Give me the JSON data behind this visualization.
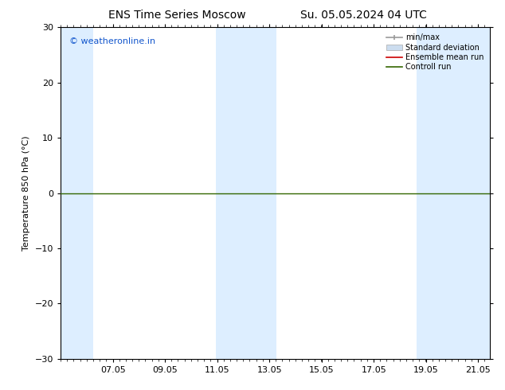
{
  "title_left": "ENS Time Series Moscow",
  "title_right": "Su. 05.05.2024 04 UTC",
  "ylabel": "Temperature 850 hPa (°C)",
  "ylim": [
    -30,
    30
  ],
  "yticks": [
    -30,
    -20,
    -10,
    0,
    10,
    20,
    30
  ],
  "xlim_start": 5.04,
  "xlim_end": 21.5,
  "xtick_labels": [
    "07.05",
    "09.05",
    "11.05",
    "13.05",
    "15.05",
    "17.05",
    "19.05",
    "21.05"
  ],
  "xtick_positions": [
    7.05,
    9.05,
    11.05,
    13.05,
    15.05,
    17.05,
    19.05,
    21.05
  ],
  "shaded_bands": [
    {
      "x_start": 5.04,
      "x_end": 6.3
    },
    {
      "x_start": 11.0,
      "x_end": 11.7
    },
    {
      "x_start": 11.7,
      "x_end": 13.3
    },
    {
      "x_start": 18.7,
      "x_end": 19.3
    },
    {
      "x_start": 19.3,
      "x_end": 21.5
    }
  ],
  "shaded_color": "#ddeeff",
  "zero_line_y": 0,
  "control_run_color": "#336600",
  "ensemble_mean_color": "#cc0000",
  "watermark_text": "© weatheronline.in",
  "watermark_color": "#1155cc",
  "legend_labels": [
    "min/max",
    "Standard deviation",
    "Ensemble mean run",
    "Controll run"
  ],
  "legend_colors": [
    "#aaaaaa",
    "#ccddef",
    "#cc0000",
    "#336600"
  ],
  "bg_color": "#ffffff",
  "spine_color": "#000000",
  "font_size_title": 10,
  "font_size_axis": 8,
  "font_size_ticks": 8,
  "font_size_watermark": 8,
  "font_size_legend": 7
}
